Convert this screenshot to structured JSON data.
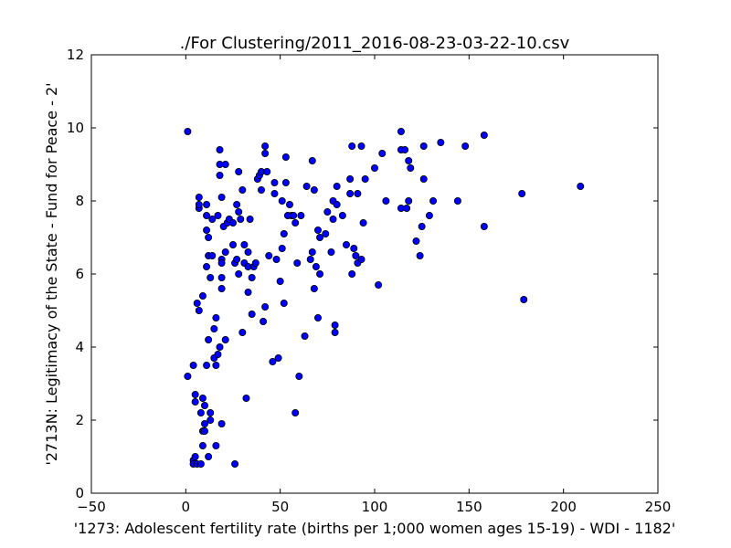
{
  "chart_data": {
    "type": "scatter",
    "title": "./For Clustering/2011_2016-08-23-03-22-10.csv",
    "xlabel": "'1273: Adolescent fertility rate  (births per 1;000 women ages 15-19) - WDI - 1182'",
    "ylabel": "'2713N: Legitimacy of the State - Fund for Peace - 2'",
    "xlim": [
      -50,
      250
    ],
    "ylim": [
      0,
      12
    ],
    "xticks": [
      -50,
      0,
      50,
      100,
      150,
      200,
      250
    ],
    "yticks": [
      0,
      2,
      4,
      6,
      8,
      10,
      12
    ],
    "xtick_labels": [
      "−50",
      "0",
      "50",
      "100",
      "150",
      "200",
      "250"
    ],
    "ytick_labels": [
      "0",
      "2",
      "4",
      "6",
      "8",
      "10",
      "12"
    ],
    "grid": false,
    "marker_color": "#0000ff",
    "points": [
      [
        1,
        9.9
      ],
      [
        1,
        3.2
      ],
      [
        4,
        0.9
      ],
      [
        4,
        0.8
      ],
      [
        5,
        1.0
      ],
      [
        4,
        3.5
      ],
      [
        5,
        2.7
      ],
      [
        5,
        2.5
      ],
      [
        6,
        5.2
      ],
      [
        6,
        0.8
      ],
      [
        7,
        5.0
      ],
      [
        7,
        8.1
      ],
      [
        7,
        7.8
      ],
      [
        7,
        7.9
      ],
      [
        8,
        2.2
      ],
      [
        8,
        0.8
      ],
      [
        9,
        1.7
      ],
      [
        9,
        1.3
      ],
      [
        9,
        5.4
      ],
      [
        9,
        2.6
      ],
      [
        10,
        2.4
      ],
      [
        10,
        1.9
      ],
      [
        10,
        1.7
      ],
      [
        11,
        7.9
      ],
      [
        11,
        7.6
      ],
      [
        11,
        7.2
      ],
      [
        11,
        6.2
      ],
      [
        11,
        3.5
      ],
      [
        12,
        7.0
      ],
      [
        12,
        6.5
      ],
      [
        12,
        4.2
      ],
      [
        12,
        1.0
      ],
      [
        13,
        5.9
      ],
      [
        13,
        2.2
      ],
      [
        13,
        2.0
      ],
      [
        14,
        7.5
      ],
      [
        14,
        6.5
      ],
      [
        15,
        4.5
      ],
      [
        15,
        3.7
      ],
      [
        16,
        4.8
      ],
      [
        16,
        3.5
      ],
      [
        16,
        1.3
      ],
      [
        17,
        7.6
      ],
      [
        17,
        3.8
      ],
      [
        18,
        4.0
      ],
      [
        18,
        9.4
      ],
      [
        18,
        8.7
      ],
      [
        18,
        9.0
      ],
      [
        19,
        8.1
      ],
      [
        19,
        6.4
      ],
      [
        19,
        6.3
      ],
      [
        19,
        5.9
      ],
      [
        19,
        5.6
      ],
      [
        19,
        1.9
      ],
      [
        20,
        7.3
      ],
      [
        21,
        9.0
      ],
      [
        21,
        6.6
      ],
      [
        21,
        4.2
      ],
      [
        22,
        7.4
      ],
      [
        23,
        7.5
      ],
      [
        25,
        7.4
      ],
      [
        25,
        6.8
      ],
      [
        26,
        6.3
      ],
      [
        26,
        0.8
      ],
      [
        27,
        7.9
      ],
      [
        27,
        6.4
      ],
      [
        28,
        7.7
      ],
      [
        28,
        6.0
      ],
      [
        28,
        8.8
      ],
      [
        29,
        7.5
      ],
      [
        30,
        4.4
      ],
      [
        30,
        8.3
      ],
      [
        31,
        6.8
      ],
      [
        31,
        6.3
      ],
      [
        32,
        2.6
      ],
      [
        33,
        6.6
      ],
      [
        33,
        6.2
      ],
      [
        33,
        5.5
      ],
      [
        34,
        7.5
      ],
      [
        35,
        4.9
      ],
      [
        35,
        5.9
      ],
      [
        36,
        6.2
      ],
      [
        37,
        6.3
      ],
      [
        38,
        8.6
      ],
      [
        39,
        8.7
      ],
      [
        40,
        8.8
      ],
      [
        40,
        8.3
      ],
      [
        41,
        4.7
      ],
      [
        42,
        9.5
      ],
      [
        42,
        9.3
      ],
      [
        42,
        5.1
      ],
      [
        43,
        8.8
      ],
      [
        44,
        6.5
      ],
      [
        46,
        3.6
      ],
      [
        47,
        8.5
      ],
      [
        47,
        8.2
      ],
      [
        48,
        6.4
      ],
      [
        49,
        3.7
      ],
      [
        50,
        5.8
      ],
      [
        51,
        6.7
      ],
      [
        51,
        8.0
      ],
      [
        52,
        7.1
      ],
      [
        52,
        5.2
      ],
      [
        53,
        9.2
      ],
      [
        53,
        8.5
      ],
      [
        54,
        7.6
      ],
      [
        55,
        7.9
      ],
      [
        56,
        7.6
      ],
      [
        57,
        7.6
      ],
      [
        58,
        7.4
      ],
      [
        58,
        2.2
      ],
      [
        59,
        6.3
      ],
      [
        60,
        3.2
      ],
      [
        61,
        7.6
      ],
      [
        63,
        4.3
      ],
      [
        64,
        8.4
      ],
      [
        66,
        6.4
      ],
      [
        67,
        6.6
      ],
      [
        67,
        9.1
      ],
      [
        68,
        8.3
      ],
      [
        68,
        5.6
      ],
      [
        69,
        6.2
      ],
      [
        70,
        7.2
      ],
      [
        70,
        4.8
      ],
      [
        71,
        6.0
      ],
      [
        71,
        7.0
      ],
      [
        74,
        7.1
      ],
      [
        75,
        7.7
      ],
      [
        77,
        6.6
      ],
      [
        78,
        8.0
      ],
      [
        78,
        7.5
      ],
      [
        79,
        4.6
      ],
      [
        79,
        4.4
      ],
      [
        80,
        8.4
      ],
      [
        80,
        7.9
      ],
      [
        83,
        7.6
      ],
      [
        85,
        6.8
      ],
      [
        87,
        8.2
      ],
      [
        87,
        8.6
      ],
      [
        88,
        9.5
      ],
      [
        88,
        6.0
      ],
      [
        89,
        6.7
      ],
      [
        90,
        6.5
      ],
      [
        91,
        6.3
      ],
      [
        91,
        8.2
      ],
      [
        93,
        6.4
      ],
      [
        93,
        9.5
      ],
      [
        94,
        7.4
      ],
      [
        95,
        8.6
      ],
      [
        100,
        8.9
      ],
      [
        102,
        5.7
      ],
      [
        104,
        9.3
      ],
      [
        106,
        8.0
      ],
      [
        114,
        9.9
      ],
      [
        114,
        9.4
      ],
      [
        114,
        7.8
      ],
      [
        116,
        9.4
      ],
      [
        117,
        7.8
      ],
      [
        118,
        9.1
      ],
      [
        118,
        8.0
      ],
      [
        119,
        8.9
      ],
      [
        122,
        6.9
      ],
      [
        124,
        6.5
      ],
      [
        125,
        7.3
      ],
      [
        126,
        9.5
      ],
      [
        126,
        8.6
      ],
      [
        129,
        7.6
      ],
      [
        131,
        8.0
      ],
      [
        135,
        9.6
      ],
      [
        144,
        8.0
      ],
      [
        148,
        9.5
      ],
      [
        158,
        9.8
      ],
      [
        158,
        7.3
      ],
      [
        178,
        8.2
      ],
      [
        179,
        5.3
      ],
      [
        209,
        8.4
      ]
    ]
  }
}
